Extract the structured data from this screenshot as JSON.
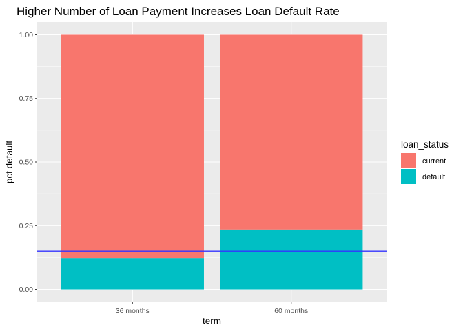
{
  "chart_data": {
    "type": "bar",
    "stacked": true,
    "title": "Higher Number of Loan Payment Increases Loan Default Rate",
    "xlabel": "term",
    "ylabel": "pct default",
    "categories": [
      "36 months",
      "60 months"
    ],
    "series": [
      {
        "name": "current",
        "color": "#F8766D",
        "values": [
          0.877,
          0.765
        ]
      },
      {
        "name": "default",
        "color": "#00BFC4",
        "values": [
          0.123,
          0.235
        ]
      }
    ],
    "ylim": [
      0,
      1
    ],
    "yticks": [
      0.0,
      0.25,
      0.5,
      0.75,
      1.0
    ],
    "ytick_labels": [
      "0.00",
      "0.25",
      "0.50",
      "0.75",
      "1.00"
    ],
    "reference_line": {
      "y": 0.15,
      "color": "#3333FF"
    },
    "legend": {
      "title": "loan_status",
      "position": "right"
    },
    "grid": true,
    "panel_background": "#EBEBEB"
  }
}
